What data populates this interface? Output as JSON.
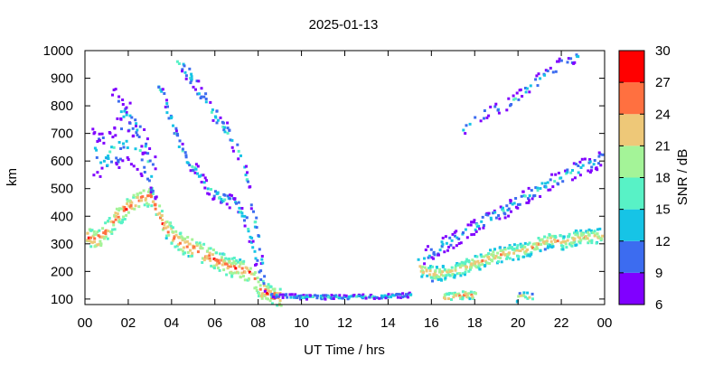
{
  "chart_data": {
    "type": "heatmap",
    "title": "2025-01-13",
    "xlabel": "UT Time / hrs",
    "ylabel": "km",
    "xlim": [
      0,
      24
    ],
    "ylim": [
      80,
      1000
    ],
    "x_ticks": [
      "00",
      "02",
      "04",
      "06",
      "08",
      "10",
      "12",
      "14",
      "16",
      "18",
      "20",
      "22",
      "00"
    ],
    "x_tick_values": [
      0,
      2,
      4,
      6,
      8,
      10,
      12,
      14,
      16,
      18,
      20,
      22,
      24
    ],
    "y_ticks": [
      "100",
      "200",
      "300",
      "400",
      "500",
      "600",
      "700",
      "800",
      "900",
      "1000"
    ],
    "y_tick_values": [
      100,
      200,
      300,
      400,
      500,
      600,
      700,
      800,
      900,
      1000
    ],
    "grid": false,
    "colorbar": {
      "label": "SNR / dB",
      "placement": "right",
      "min": 6,
      "max": 30,
      "ticks": [
        "6",
        "9",
        "12",
        "15",
        "18",
        "21",
        "24",
        "27",
        "30"
      ],
      "tick_values": [
        6,
        9,
        12,
        15,
        18,
        21,
        24,
        27,
        30
      ],
      "bins": [
        {
          "from": 6,
          "to": 9,
          "color": "#8000ff"
        },
        {
          "from": 9,
          "to": 12,
          "color": "#3c6cf0"
        },
        {
          "from": 12,
          "to": 15,
          "color": "#16c4e6"
        },
        {
          "from": 15,
          "to": 18,
          "color": "#58f2c6"
        },
        {
          "from": 18,
          "to": 21,
          "color": "#a4f498"
        },
        {
          "from": 21,
          "to": 24,
          "color": "#eec878"
        },
        {
          "from": 24,
          "to": 27,
          "color": "#ff7040"
        },
        {
          "from": 27,
          "to": 30,
          "color": "#ff0000"
        }
      ]
    },
    "traces": [
      {
        "points": [
          [
            0,
            330
          ],
          [
            0.5,
            320
          ],
          [
            1,
            360
          ],
          [
            1.5,
            410
          ],
          [
            2,
            440
          ],
          [
            2.5,
            470
          ],
          [
            3,
            475
          ],
          [
            3.5,
            380
          ],
          [
            4,
            330
          ],
          [
            4.5,
            300
          ],
          [
            5,
            285
          ],
          [
            5.5,
            265
          ],
          [
            6,
            245
          ],
          [
            6.5,
            225
          ],
          [
            7,
            215
          ],
          [
            7.5,
            200
          ],
          [
            8,
            140
          ],
          [
            8.5,
            120
          ],
          [
            9,
            105
          ]
        ],
        "snr": 22,
        "spread": 35,
        "density": 4
      },
      {
        "points": [
          [
            0.3,
            640
          ],
          [
            0.8,
            620
          ],
          [
            1.3,
            650
          ],
          [
            1.8,
            700
          ],
          [
            2.3,
            650
          ],
          [
            2.8,
            600
          ],
          [
            3.2,
            520
          ]
        ],
        "snr": 11,
        "spread": 90,
        "density": 3
      },
      {
        "points": [
          [
            1.2,
            820
          ],
          [
            1.6,
            780
          ],
          [
            2,
            760
          ],
          [
            2.4,
            720
          ],
          [
            2.8,
            640
          ]
        ],
        "snr": 10,
        "spread": 60,
        "density": 2
      },
      {
        "points": [
          [
            3.3,
            880
          ],
          [
            3.6,
            820
          ],
          [
            3.9,
            750
          ],
          [
            4.2,
            680
          ],
          [
            4.6,
            610
          ],
          [
            5,
            580
          ],
          [
            5.4,
            530
          ],
          [
            5.8,
            490
          ],
          [
            6.2,
            470
          ],
          [
            6.6,
            460
          ],
          [
            7,
            440
          ],
          [
            7.4,
            380
          ],
          [
            7.8,
            250
          ],
          [
            8.2,
            150
          ]
        ],
        "snr": 12,
        "spread": 25,
        "density": 2
      },
      {
        "points": [
          [
            4.2,
            970
          ],
          [
            4.8,
            910
          ],
          [
            5.4,
            830
          ],
          [
            6,
            760
          ],
          [
            6.6,
            700
          ],
          [
            7,
            640
          ],
          [
            7.4,
            540
          ],
          [
            7.8,
            380
          ],
          [
            8.2,
            200
          ]
        ],
        "snr": 12,
        "spread": 30,
        "density": 2
      },
      {
        "points": [
          [
            8.5,
            118
          ],
          [
            10,
            112
          ],
          [
            12,
            112
          ],
          [
            14,
            115
          ],
          [
            15,
            120
          ]
        ],
        "snr": 12,
        "spread": 8,
        "density": 2
      },
      {
        "points": [
          [
            15.3,
            220
          ],
          [
            16,
            195
          ],
          [
            16.8,
            205
          ],
          [
            17.5,
            220
          ],
          [
            18.2,
            240
          ],
          [
            18.8,
            260
          ],
          [
            19.5,
            272
          ],
          [
            20.2,
            280
          ],
          [
            20.8,
            300
          ],
          [
            21.4,
            320
          ],
          [
            22,
            310
          ],
          [
            22.6,
            325
          ],
          [
            23.2,
            330
          ],
          [
            24,
            335
          ]
        ],
        "snr": 19,
        "spread": 28,
        "density": 4
      },
      {
        "points": [
          [
            15.6,
            260
          ],
          [
            16.4,
            300
          ],
          [
            17.2,
            330
          ],
          [
            18,
            370
          ],
          [
            18.8,
            410
          ],
          [
            19.6,
            440
          ],
          [
            20.4,
            480
          ],
          [
            21.2,
            520
          ],
          [
            22,
            550
          ],
          [
            22.8,
            580
          ],
          [
            23.5,
            600
          ],
          [
            24,
            620
          ]
        ],
        "snr": 11,
        "spread": 30,
        "density": 2
      },
      {
        "points": [
          [
            17.4,
            720
          ],
          [
            18.2,
            770
          ],
          [
            19,
            800
          ],
          [
            19.6,
            820
          ],
          [
            20.3,
            860
          ],
          [
            21.2,
            920
          ],
          [
            22,
            960
          ],
          [
            23,
            990
          ]
        ],
        "snr": 10,
        "spread": 25,
        "density": 1
      },
      {
        "points": [
          [
            16.5,
            110
          ],
          [
            17,
            115
          ],
          [
            17.5,
            120
          ],
          [
            18,
            118
          ]
        ],
        "snr": 21,
        "spread": 14,
        "density": 3
      },
      {
        "points": [
          [
            19.8,
            105
          ],
          [
            20.2,
            120
          ],
          [
            20.6,
            110
          ]
        ],
        "snr": 18,
        "spread": 14,
        "density": 2
      }
    ],
    "scatter_seed": 7
  }
}
